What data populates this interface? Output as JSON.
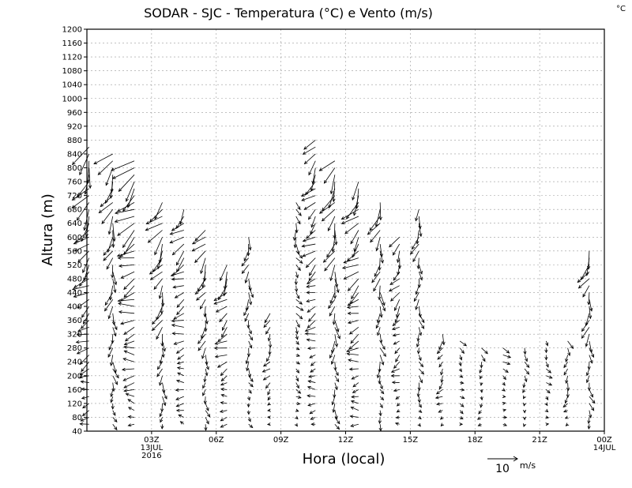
{
  "chart_data": {
    "type": "vector-field",
    "title": "SODAR - SJC - Temperatura (°C) e Vento (m/s)",
    "unit_corner": "°C",
    "xlabel": "Hora (local)",
    "ylabel": "Altura (m)",
    "xlim": [
      0,
      24
    ],
    "ylim": [
      40,
      1200
    ],
    "y_ticks": [
      40,
      80,
      120,
      160,
      200,
      240,
      280,
      320,
      360,
      400,
      440,
      480,
      520,
      560,
      600,
      640,
      680,
      720,
      760,
      800,
      840,
      880,
      920,
      960,
      1000,
      1040,
      1080,
      1120,
      1160,
      1200
    ],
    "x_ticks": [
      {
        "hour": 3,
        "label": "03Z",
        "sub1": "13JUL",
        "sub2": "2016"
      },
      {
        "hour": 6,
        "label": "06Z"
      },
      {
        "hour": 9,
        "label": "09Z"
      },
      {
        "hour": 12,
        "label": "12Z"
      },
      {
        "hour": 15,
        "label": "15Z"
      },
      {
        "hour": 18,
        "label": "18Z"
      },
      {
        "hour": 21,
        "label": "21Z"
      },
      {
        "hour": 24,
        "label": "00Z",
        "sub1": "14JUL"
      }
    ],
    "reference_vector": {
      "speed": 10,
      "label": "10",
      "unit": "m/s"
    },
    "profiles": [
      {
        "hour": 0.1,
        "top": 860,
        "dir": 20,
        "spd": 7
      },
      {
        "hour": 1.2,
        "top": 850,
        "dir": 35,
        "spd": 6
      },
      {
        "hour": 2.2,
        "top": 820,
        "dir": 40,
        "spd": 7
      },
      {
        "hour": 3.5,
        "top": 700,
        "dir": 45,
        "spd": 6
      },
      {
        "hour": 4.5,
        "top": 680,
        "dir": 40,
        "spd": 5
      },
      {
        "hour": 5.5,
        "top": 620,
        "dir": 40,
        "spd": 5
      },
      {
        "hour": 6.5,
        "top": 520,
        "dir": 30,
        "spd": 5
      },
      {
        "hour": 7.5,
        "top": 600,
        "dir": 20,
        "spd": 4
      },
      {
        "hour": 8.5,
        "top": 380,
        "dir": 10,
        "spd": 3
      },
      {
        "hour": 9.7,
        "top": 700,
        "dir": 350,
        "spd": 3
      },
      {
        "hour": 10.6,
        "top": 890,
        "dir": 30,
        "spd": 5
      },
      {
        "hour": 11.5,
        "top": 820,
        "dir": 35,
        "spd": 6
      },
      {
        "hour": 12.6,
        "top": 770,
        "dir": 30,
        "spd": 6
      },
      {
        "hour": 13.6,
        "top": 700,
        "dir": 25,
        "spd": 5
      },
      {
        "hour": 14.5,
        "top": 600,
        "dir": 20,
        "spd": 4
      },
      {
        "hour": 15.4,
        "top": 680,
        "dir": 20,
        "spd": 4
      },
      {
        "hour": 16.5,
        "top": 320,
        "dir": 10,
        "spd": 3
      },
      {
        "hour": 17.3,
        "top": 300,
        "dir": 330,
        "spd": 2
      },
      {
        "hour": 18.3,
        "top": 280,
        "dir": 340,
        "spd": 2
      },
      {
        "hour": 19.3,
        "top": 280,
        "dir": 320,
        "spd": 2
      },
      {
        "hour": 20.3,
        "top": 290,
        "dir": 330,
        "spd": 2
      },
      {
        "hour": 21.3,
        "top": 300,
        "dir": 340,
        "spd": 2
      },
      {
        "hour": 22.3,
        "top": 300,
        "dir": 350,
        "spd": 3
      },
      {
        "hour": 23.3,
        "top": 560,
        "dir": 30,
        "spd": 5
      }
    ]
  }
}
